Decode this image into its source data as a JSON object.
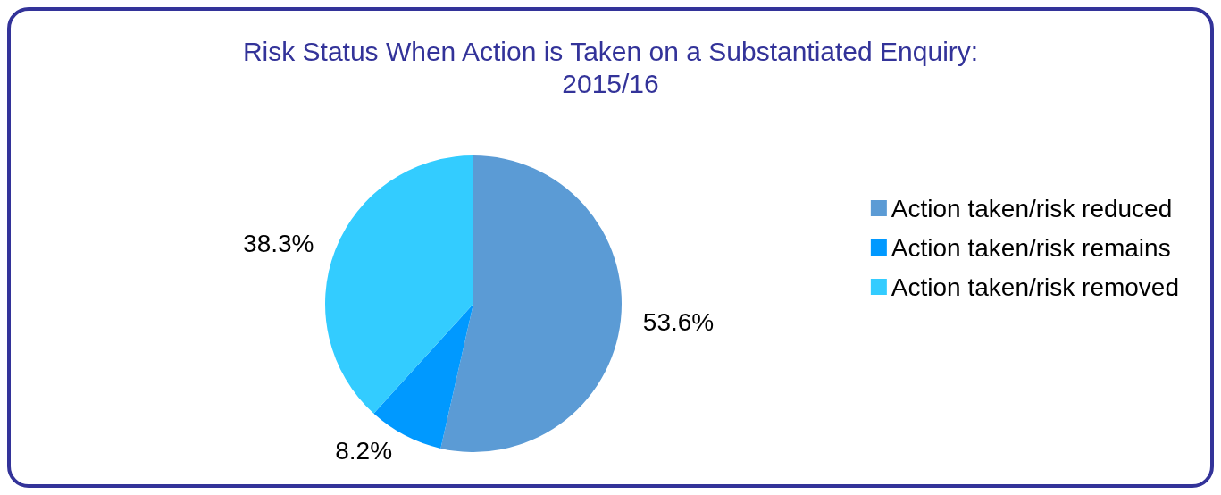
{
  "chart_data": {
    "type": "pie",
    "title": "Risk Status When Action is Taken on a Substantiated Enquiry:\n2015/16",
    "categories": [
      "Action taken/risk reduced",
      "Action taken/risk remains",
      "Action taken/risk removed"
    ],
    "values": [
      53.6,
      8.2,
      38.3
    ],
    "colors": [
      "#5b9bd5",
      "#0099ff",
      "#33ccff"
    ],
    "value_labels": [
      "53.6%",
      "8.2%",
      "38.3%"
    ],
    "legend": "right"
  }
}
